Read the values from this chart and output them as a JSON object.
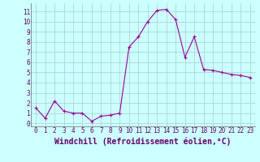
{
  "x": [
    0,
    1,
    2,
    3,
    4,
    5,
    6,
    7,
    8,
    9,
    10,
    11,
    12,
    13,
    14,
    15,
    16,
    17,
    18,
    19,
    20,
    21,
    22,
    23
  ],
  "y": [
    1.5,
    0.5,
    2.2,
    1.2,
    1.0,
    1.0,
    0.2,
    0.7,
    0.8,
    1.0,
    7.5,
    8.5,
    10.0,
    11.1,
    11.2,
    10.2,
    6.5,
    8.5,
    5.3,
    5.2,
    5.0,
    4.8,
    4.7,
    4.5
  ],
  "line_color": "#990099",
  "marker": "+",
  "marker_size": 3,
  "marker_color": "#990099",
  "bg_color": "#ccffff",
  "grid_color": "#aacccc",
  "xlabel": "Windchill (Refroidissement éolien,°C)",
  "xlabel_fontsize": 7,
  "xlabel_color": "#660066",
  "tick_color": "#660066",
  "ylim": [
    -0.3,
    11.8
  ],
  "xlim": [
    -0.5,
    23.5
  ],
  "yticks": [
    0,
    1,
    2,
    3,
    4,
    5,
    6,
    7,
    8,
    9,
    10,
    11
  ],
  "xticks": [
    0,
    1,
    2,
    3,
    4,
    5,
    6,
    7,
    8,
    9,
    10,
    11,
    12,
    13,
    14,
    15,
    16,
    17,
    18,
    19,
    20,
    21,
    22,
    23
  ]
}
